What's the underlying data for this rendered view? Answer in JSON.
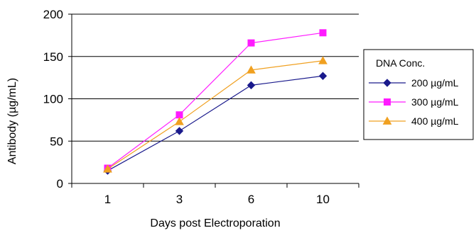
{
  "chart_data": {
    "type": "line",
    "title": "",
    "xlabel": "Days post Electroporation",
    "ylabel": "Antibody (µg/mL)",
    "categories": [
      "1",
      "3",
      "6",
      "10"
    ],
    "ylim": [
      0,
      200
    ],
    "yticks": [
      0,
      50,
      100,
      150,
      200
    ],
    "grid": "horizontal",
    "legend": {
      "title": "DNA Conc.",
      "placement": "right"
    },
    "series": [
      {
        "name": "200 µg/mL",
        "values": [
          15,
          62,
          116,
          127
        ],
        "color": "#1a1a8c",
        "marker": "diamond"
      },
      {
        "name": "300 µg/mL",
        "values": [
          18,
          81,
          166,
          178
        ],
        "color": "#ff1aff",
        "marker": "square"
      },
      {
        "name": "400 µg/mL",
        "values": [
          17,
          73,
          134,
          145
        ],
        "color": "#f0a020",
        "marker": "triangle"
      }
    ]
  }
}
